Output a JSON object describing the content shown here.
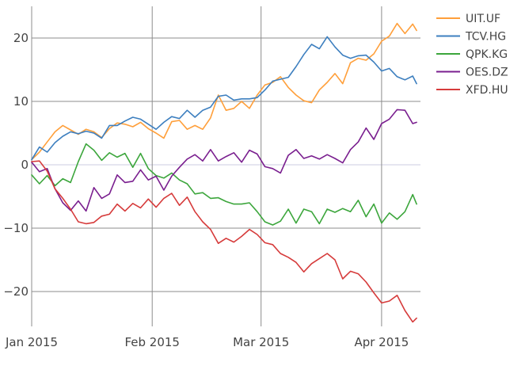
{
  "chart_data": {
    "type": "line",
    "title": "",
    "xlabel": "",
    "ylabel": "",
    "x_start": "2015-01-01",
    "x_end": "2015-04-11",
    "xlim": [
      "2015-01-01",
      "2015-04-11"
    ],
    "ylim": [
      -25.5,
      25
    ],
    "grid": true,
    "legend_position": "top-right",
    "x_ticks": [
      {
        "date": "2015-01-01",
        "label": "Jan 2015"
      },
      {
        "date": "2015-02-01",
        "label": "Feb 2015"
      },
      {
        "date": "2015-03-01",
        "label": "Mar 2015"
      },
      {
        "date": "2015-04-01",
        "label": "Apr 2015"
      }
    ],
    "y_ticks": [
      {
        "value": 20,
        "label": "20"
      },
      {
        "value": 10,
        "label": "10"
      },
      {
        "value": 0,
        "label": "0"
      },
      {
        "value": -10,
        "label": "−10"
      },
      {
        "value": -20,
        "label": "−20"
      }
    ],
    "series": [
      {
        "name": "UIT.UF",
        "color": "#ff9f3a",
        "points": [
          [
            "2015-01-01",
            0.8
          ],
          [
            "2015-01-03",
            2.0
          ],
          [
            "2015-01-05",
            3.6
          ],
          [
            "2015-01-07",
            5.2
          ],
          [
            "2015-01-09",
            6.2
          ],
          [
            "2015-01-11",
            5.5
          ],
          [
            "2015-01-13",
            4.8
          ],
          [
            "2015-01-15",
            5.6
          ],
          [
            "2015-01-17",
            5.2
          ],
          [
            "2015-01-19",
            4.3
          ],
          [
            "2015-01-21",
            5.7
          ],
          [
            "2015-01-23",
            6.6
          ],
          [
            "2015-01-25",
            6.4
          ],
          [
            "2015-01-27",
            6.0
          ],
          [
            "2015-01-29",
            6.7
          ],
          [
            "2015-01-31",
            5.7
          ],
          [
            "2015-02-02",
            5.0
          ],
          [
            "2015-02-04",
            4.2
          ],
          [
            "2015-02-06",
            6.8
          ],
          [
            "2015-02-08",
            7.0
          ],
          [
            "2015-02-10",
            5.6
          ],
          [
            "2015-02-12",
            6.2
          ],
          [
            "2015-02-14",
            5.6
          ],
          [
            "2015-02-16",
            7.4
          ],
          [
            "2015-02-18",
            11.0
          ],
          [
            "2015-02-20",
            8.6
          ],
          [
            "2015-02-22",
            8.9
          ],
          [
            "2015-02-24",
            10.0
          ],
          [
            "2015-02-26",
            8.9
          ],
          [
            "2015-02-28",
            11.0
          ],
          [
            "2015-03-02",
            12.6
          ],
          [
            "2015-03-04",
            13.0
          ],
          [
            "2015-03-06",
            13.9
          ],
          [
            "2015-03-08",
            12.2
          ],
          [
            "2015-03-10",
            11.0
          ],
          [
            "2015-03-12",
            10.1
          ],
          [
            "2015-03-14",
            9.8
          ],
          [
            "2015-03-16",
            11.8
          ],
          [
            "2015-03-18",
            13.0
          ],
          [
            "2015-03-20",
            14.4
          ],
          [
            "2015-03-22",
            12.8
          ],
          [
            "2015-03-24",
            16.1
          ],
          [
            "2015-03-26",
            16.8
          ],
          [
            "2015-03-28",
            16.5
          ],
          [
            "2015-03-30",
            17.5
          ],
          [
            "2015-04-01",
            19.5
          ],
          [
            "2015-04-03",
            20.3
          ],
          [
            "2015-04-05",
            22.3
          ],
          [
            "2015-04-07",
            20.7
          ],
          [
            "2015-04-09",
            22.2
          ],
          [
            "2015-04-10",
            21.2
          ]
        ]
      },
      {
        "name": "TCV.HG",
        "color": "#3d7fbf",
        "points": [
          [
            "2015-01-01",
            0.8
          ],
          [
            "2015-01-03",
            2.8
          ],
          [
            "2015-01-05",
            2.0
          ],
          [
            "2015-01-07",
            3.5
          ],
          [
            "2015-01-09",
            4.5
          ],
          [
            "2015-01-11",
            5.2
          ],
          [
            "2015-01-13",
            4.9
          ],
          [
            "2015-01-15",
            5.3
          ],
          [
            "2015-01-17",
            5.0
          ],
          [
            "2015-01-19",
            4.2
          ],
          [
            "2015-01-21",
            6.2
          ],
          [
            "2015-01-23",
            6.2
          ],
          [
            "2015-01-25",
            6.9
          ],
          [
            "2015-01-27",
            7.5
          ],
          [
            "2015-01-29",
            7.2
          ],
          [
            "2015-01-31",
            6.4
          ],
          [
            "2015-02-02",
            5.6
          ],
          [
            "2015-02-04",
            6.7
          ],
          [
            "2015-02-06",
            7.6
          ],
          [
            "2015-02-08",
            7.3
          ],
          [
            "2015-02-10",
            8.6
          ],
          [
            "2015-02-12",
            7.5
          ],
          [
            "2015-02-14",
            8.6
          ],
          [
            "2015-02-16",
            9.1
          ],
          [
            "2015-02-18",
            10.8
          ],
          [
            "2015-02-20",
            11.0
          ],
          [
            "2015-02-22",
            10.2
          ],
          [
            "2015-02-24",
            10.4
          ],
          [
            "2015-02-26",
            10.4
          ],
          [
            "2015-02-28",
            10.6
          ],
          [
            "2015-03-02",
            11.8
          ],
          [
            "2015-03-04",
            13.2
          ],
          [
            "2015-03-06",
            13.5
          ],
          [
            "2015-03-08",
            13.8
          ],
          [
            "2015-03-10",
            15.5
          ],
          [
            "2015-03-12",
            17.4
          ],
          [
            "2015-03-14",
            19.0
          ],
          [
            "2015-03-16",
            18.3
          ],
          [
            "2015-03-18",
            20.2
          ],
          [
            "2015-03-20",
            18.6
          ],
          [
            "2015-03-22",
            17.3
          ],
          [
            "2015-03-24",
            16.8
          ],
          [
            "2015-03-26",
            17.2
          ],
          [
            "2015-03-28",
            17.3
          ],
          [
            "2015-03-30",
            16.2
          ],
          [
            "2015-04-01",
            14.8
          ],
          [
            "2015-04-03",
            15.2
          ],
          [
            "2015-04-05",
            13.9
          ],
          [
            "2015-04-07",
            13.4
          ],
          [
            "2015-04-09",
            14.0
          ],
          [
            "2015-04-10",
            12.8
          ]
        ]
      },
      {
        "name": "QPK.KG",
        "color": "#3ca63c",
        "points": [
          [
            "2015-01-01",
            -1.6
          ],
          [
            "2015-01-03",
            -3.0
          ],
          [
            "2015-01-05",
            -1.7
          ],
          [
            "2015-01-07",
            -3.3
          ],
          [
            "2015-01-09",
            -2.2
          ],
          [
            "2015-01-11",
            -2.8
          ],
          [
            "2015-01-13",
            0.5
          ],
          [
            "2015-01-15",
            3.3
          ],
          [
            "2015-01-17",
            2.3
          ],
          [
            "2015-01-19",
            0.7
          ],
          [
            "2015-01-21",
            1.9
          ],
          [
            "2015-01-23",
            1.2
          ],
          [
            "2015-01-25",
            1.8
          ],
          [
            "2015-01-27",
            -0.4
          ],
          [
            "2015-01-29",
            1.8
          ],
          [
            "2015-01-31",
            -0.6
          ],
          [
            "2015-02-02",
            -1.7
          ],
          [
            "2015-02-04",
            -2.1
          ],
          [
            "2015-02-06",
            -1.3
          ],
          [
            "2015-02-08",
            -2.4
          ],
          [
            "2015-02-10",
            -3.0
          ],
          [
            "2015-02-12",
            -4.6
          ],
          [
            "2015-02-14",
            -4.4
          ],
          [
            "2015-02-16",
            -5.3
          ],
          [
            "2015-02-18",
            -5.2
          ],
          [
            "2015-02-20",
            -5.8
          ],
          [
            "2015-02-22",
            -6.2
          ],
          [
            "2015-02-24",
            -6.2
          ],
          [
            "2015-02-26",
            -6.0
          ],
          [
            "2015-02-28",
            -7.4
          ],
          [
            "2015-03-02",
            -9.0
          ],
          [
            "2015-03-04",
            -9.5
          ],
          [
            "2015-03-06",
            -8.9
          ],
          [
            "2015-03-08",
            -7.0
          ],
          [
            "2015-03-10",
            -9.2
          ],
          [
            "2015-03-12",
            -7.0
          ],
          [
            "2015-03-14",
            -7.4
          ],
          [
            "2015-03-16",
            -9.3
          ],
          [
            "2015-03-18",
            -7.0
          ],
          [
            "2015-03-20",
            -7.5
          ],
          [
            "2015-03-22",
            -6.9
          ],
          [
            "2015-03-24",
            -7.4
          ],
          [
            "2015-03-26",
            -5.6
          ],
          [
            "2015-03-28",
            -8.2
          ],
          [
            "2015-03-30",
            -6.2
          ],
          [
            "2015-04-01",
            -9.2
          ],
          [
            "2015-04-03",
            -7.6
          ],
          [
            "2015-04-05",
            -8.6
          ],
          [
            "2015-04-07",
            -7.4
          ],
          [
            "2015-04-09",
            -4.7
          ],
          [
            "2015-04-10",
            -6.2
          ]
        ]
      },
      {
        "name": "OES.DZ",
        "color": "#7a1f8f",
        "points": [
          [
            "2015-01-01",
            0.4
          ],
          [
            "2015-01-03",
            -1.1
          ],
          [
            "2015-01-05",
            -0.6
          ],
          [
            "2015-01-07",
            -3.8
          ],
          [
            "2015-01-09",
            -6.0
          ],
          [
            "2015-01-11",
            -7.2
          ],
          [
            "2015-01-13",
            -5.7
          ],
          [
            "2015-01-15",
            -7.3
          ],
          [
            "2015-01-17",
            -3.6
          ],
          [
            "2015-01-19",
            -5.3
          ],
          [
            "2015-01-21",
            -4.6
          ],
          [
            "2015-01-23",
            -1.6
          ],
          [
            "2015-01-25",
            -2.8
          ],
          [
            "2015-01-27",
            -2.6
          ],
          [
            "2015-01-29",
            -0.8
          ],
          [
            "2015-01-31",
            -2.4
          ],
          [
            "2015-02-02",
            -1.8
          ],
          [
            "2015-02-04",
            -4.0
          ],
          [
            "2015-02-06",
            -1.8
          ],
          [
            "2015-02-08",
            -0.4
          ],
          [
            "2015-02-10",
            0.9
          ],
          [
            "2015-02-12",
            1.6
          ],
          [
            "2015-02-14",
            0.6
          ],
          [
            "2015-02-16",
            2.4
          ],
          [
            "2015-02-18",
            0.6
          ],
          [
            "2015-02-20",
            1.3
          ],
          [
            "2015-02-22",
            1.9
          ],
          [
            "2015-02-24",
            0.4
          ],
          [
            "2015-02-26",
            2.3
          ],
          [
            "2015-02-28",
            1.7
          ],
          [
            "2015-03-02",
            -0.3
          ],
          [
            "2015-03-04",
            -0.6
          ],
          [
            "2015-03-06",
            -1.3
          ],
          [
            "2015-03-08",
            1.5
          ],
          [
            "2015-03-10",
            2.4
          ],
          [
            "2015-03-12",
            1.0
          ],
          [
            "2015-03-14",
            1.4
          ],
          [
            "2015-03-16",
            0.9
          ],
          [
            "2015-03-18",
            1.6
          ],
          [
            "2015-03-20",
            1.0
          ],
          [
            "2015-03-22",
            0.3
          ],
          [
            "2015-03-24",
            2.4
          ],
          [
            "2015-03-26",
            3.6
          ],
          [
            "2015-03-28",
            5.8
          ],
          [
            "2015-03-30",
            4.0
          ],
          [
            "2015-04-01",
            6.5
          ],
          [
            "2015-04-03",
            7.2
          ],
          [
            "2015-04-05",
            8.7
          ],
          [
            "2015-04-07",
            8.6
          ],
          [
            "2015-04-09",
            6.5
          ],
          [
            "2015-04-10",
            6.7
          ]
        ]
      },
      {
        "name": "XFD.HU",
        "color": "#d63b3b",
        "points": [
          [
            "2015-01-01",
            0.5
          ],
          [
            "2015-01-03",
            0.6
          ],
          [
            "2015-01-05",
            -1.0
          ],
          [
            "2015-01-07",
            -3.8
          ],
          [
            "2015-01-09",
            -5.3
          ],
          [
            "2015-01-11",
            -7.0
          ],
          [
            "2015-01-13",
            -9.0
          ],
          [
            "2015-01-15",
            -9.3
          ],
          [
            "2015-01-17",
            -9.1
          ],
          [
            "2015-01-19",
            -8.1
          ],
          [
            "2015-01-21",
            -7.8
          ],
          [
            "2015-01-23",
            -6.2
          ],
          [
            "2015-01-25",
            -7.3
          ],
          [
            "2015-01-27",
            -6.1
          ],
          [
            "2015-01-29",
            -6.8
          ],
          [
            "2015-01-31",
            -5.4
          ],
          [
            "2015-02-02",
            -6.7
          ],
          [
            "2015-02-04",
            -5.3
          ],
          [
            "2015-02-06",
            -4.5
          ],
          [
            "2015-02-08",
            -6.4
          ],
          [
            "2015-02-10",
            -5.1
          ],
          [
            "2015-02-12",
            -7.4
          ],
          [
            "2015-02-14",
            -9.0
          ],
          [
            "2015-02-16",
            -10.2
          ],
          [
            "2015-02-18",
            -12.4
          ],
          [
            "2015-02-20",
            -11.6
          ],
          [
            "2015-02-22",
            -12.2
          ],
          [
            "2015-02-24",
            -11.3
          ],
          [
            "2015-02-26",
            -10.2
          ],
          [
            "2015-02-28",
            -11.0
          ],
          [
            "2015-03-02",
            -12.3
          ],
          [
            "2015-03-04",
            -12.6
          ],
          [
            "2015-03-06",
            -14.0
          ],
          [
            "2015-03-08",
            -14.6
          ],
          [
            "2015-03-10",
            -15.4
          ],
          [
            "2015-03-12",
            -16.9
          ],
          [
            "2015-03-14",
            -15.6
          ],
          [
            "2015-03-16",
            -14.8
          ],
          [
            "2015-03-18",
            -14.0
          ],
          [
            "2015-03-20",
            -15.0
          ],
          [
            "2015-03-22",
            -18.0
          ],
          [
            "2015-03-24",
            -16.8
          ],
          [
            "2015-03-26",
            -17.2
          ],
          [
            "2015-03-28",
            -18.5
          ],
          [
            "2015-03-30",
            -20.2
          ],
          [
            "2015-04-01",
            -21.8
          ],
          [
            "2015-04-03",
            -21.5
          ],
          [
            "2015-04-05",
            -20.6
          ],
          [
            "2015-04-07",
            -23.0
          ],
          [
            "2015-04-09",
            -24.8
          ],
          [
            "2015-04-10",
            -24.2
          ]
        ]
      }
    ]
  }
}
